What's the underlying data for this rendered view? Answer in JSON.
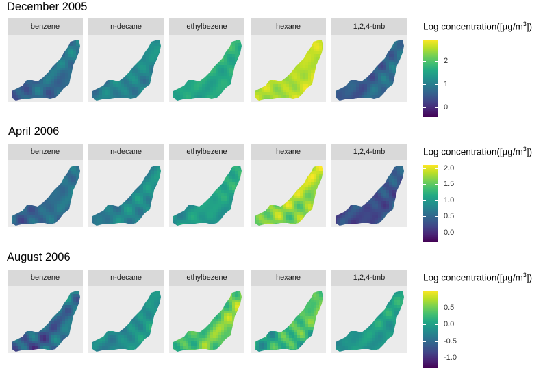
{
  "chart_data": [
    {
      "type": "heatmap",
      "title": "December 2005",
      "facets": [
        "benzene",
        "n-decane",
        "ethylbezene",
        "hexane",
        "1,2,4-tmb"
      ],
      "legend_title": "Log concentration([µg/m",
      "legend_title_sup": "3",
      "legend_title_end": "])",
      "legend_ticks": [
        0,
        1,
        2
      ],
      "legend_range": [
        -0.4,
        2.9
      ],
      "facet_levels": [
        0.75,
        1.1,
        1.6,
        2.55,
        0.7
      ],
      "facet_variation": [
        0.55,
        0.45,
        0.35,
        0.35,
        0.55
      ]
    },
    {
      "type": "heatmap",
      "title": "April 2006",
      "facets": [
        "benzene",
        "n-decane",
        "ethylbezene",
        "hexane",
        "1,2,4-tmb"
      ],
      "legend_title": "Log concentration([µg/m",
      "legend_title_sup": "3",
      "legend_title_end": "])",
      "legend_ticks": [
        0.0,
        0.5,
        1.0,
        1.5,
        2.0
      ],
      "legend_tick_labels": [
        "0.0",
        "0.5",
        "1.0",
        "1.5",
        "2.0"
      ],
      "legend_range": [
        -0.3,
        2.1
      ],
      "facet_levels": [
        0.55,
        0.8,
        1.05,
        1.7,
        0.3
      ],
      "facet_variation": [
        0.35,
        0.35,
        0.35,
        0.45,
        0.4
      ]
    },
    {
      "type": "heatmap",
      "title": "August 2006",
      "facets": [
        "benzene",
        "n-decane",
        "ethylbezene",
        "hexane",
        "1,2,4-tmb"
      ],
      "legend_title": "Log concentration([µg/m",
      "legend_title_sup": "3",
      "legend_title_end": "])",
      "legend_ticks": [
        -1.0,
        -0.5,
        0.0,
        0.5
      ],
      "legend_tick_labels": [
        "-1.0",
        "-0.5",
        "0.0",
        "0.5"
      ],
      "legend_range": [
        -1.3,
        1.0
      ],
      "facet_levels": [
        -0.5,
        -0.15,
        0.45,
        0.25,
        -0.05
      ],
      "facet_variation": [
        0.55,
        0.35,
        0.5,
        0.55,
        0.3
      ]
    }
  ]
}
